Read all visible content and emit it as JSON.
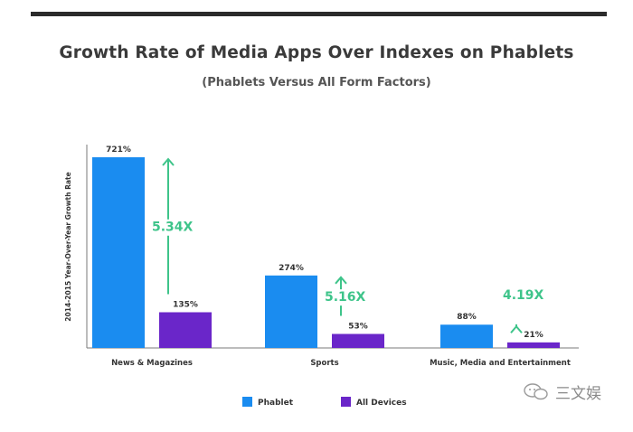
{
  "watermark": "三文娱",
  "chart_data": {
    "type": "bar",
    "title": "Growth Rate of Media Apps Over Indexes on Phablets",
    "subtitle": "(Phablets Versus All Form Factors)",
    "ylabel": "2014-2015 Year-Over-Year Growth Rate",
    "categories": [
      "News & Magazines",
      "Sports",
      "Music, Media and Entertainment"
    ],
    "series": [
      {
        "name": "Phablet",
        "values": [
          721,
          274,
          88
        ],
        "labels": [
          "721%",
          "274%",
          "88%"
        ],
        "color": "#1a8cf0"
      },
      {
        "name": "All Devices",
        "values": [
          135,
          53,
          21
        ],
        "labels": [
          "135%",
          "53%",
          "21%"
        ],
        "color": "#6a26c9"
      }
    ],
    "multipliers": [
      "5.34X",
      "5.16X",
      "4.19X"
    ],
    "multiplier_color": "#3ec48a",
    "ylim": [
      0,
      721
    ],
    "grid": false,
    "legend": "bottom"
  }
}
